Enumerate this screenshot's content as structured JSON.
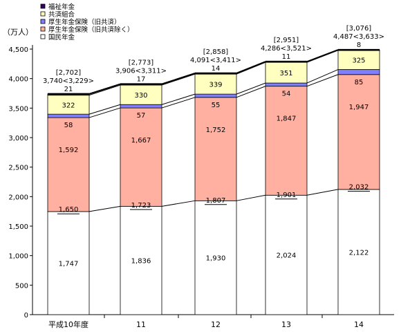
{
  "chart_data": {
    "type": "bar",
    "title": "",
    "ylabel": "（万人）",
    "xlabel": "",
    "ylim": [
      0,
      4500
    ],
    "yticks": [
      "0",
      "500",
      "1,000",
      "1,500",
      "2,000",
      "2,500",
      "3,000",
      "3,500",
      "4,000",
      "4,500"
    ],
    "categories": [
      "平成10年度",
      "11",
      "12",
      "13",
      "14"
    ],
    "colors": {
      "国民年金": "#ffffff",
      "厚生年金保険（旧共済除く）": "#ffb0a0",
      "厚生年金保険（旧共済）": "#7f7fff",
      "共済組合": "#ffffc0",
      "福祉年金": "#330066"
    },
    "series": [
      {
        "name": "国民年金",
        "values": [
          1747,
          1836,
          1930,
          2024,
          2122
        ],
        "labels": [
          "1,747",
          "1,836",
          "1,930",
          "2,024",
          "2,122"
        ]
      },
      {
        "name": "厚生年金保険（旧共済除く）",
        "values": [
          1592,
          1667,
          1752,
          1847,
          1947
        ],
        "labels": [
          "1,592",
          "1,667",
          "1,752",
          "1,847",
          "1,947"
        ]
      },
      {
        "name": "厚生年金保険（旧共済）",
        "values": [
          58,
          57,
          55,
          54,
          85
        ],
        "labels": [
          "58",
          "57",
          "55",
          "54",
          "85"
        ]
      },
      {
        "name": "共済組合",
        "values": [
          322,
          330,
          339,
          351,
          325
        ],
        "labels": [
          "322",
          "330",
          "339",
          "351",
          "325"
        ]
      },
      {
        "name": "福祉年金",
        "values": [
          21,
          17,
          14,
          11,
          8
        ],
        "labels": [
          "21",
          "17",
          "14",
          "11",
          "8"
        ]
      }
    ],
    "underlined_labels": [
      "1,650",
      "1,723",
      "1,807",
      "1,901",
      "2,032"
    ],
    "underlined_values": [
      1650,
      1723,
      1807,
      1901,
      2032
    ],
    "totals": [
      3740,
      3906,
      4091,
      4286,
      4487
    ],
    "top_annotations": [
      {
        "bracket": "[2,702]",
        "total": "3,740<3,229>"
      },
      {
        "bracket": "[2,773]",
        "total": "3,906<3,311>"
      },
      {
        "bracket": "[2,858]",
        "total": "4,091<3,411>"
      },
      {
        "bracket": "[2,951]",
        "total": "4,286<3,521>"
      },
      {
        "bracket": "[3,076]",
        "total": "4,487<3,633>"
      }
    ],
    "legend": [
      "福祉年金",
      "共済組合",
      "厚生年金保険（旧共済）",
      "厚生年金保険（旧共済除く）",
      "国民年金"
    ],
    "legend_position": "top-left",
    "grid": false
  }
}
